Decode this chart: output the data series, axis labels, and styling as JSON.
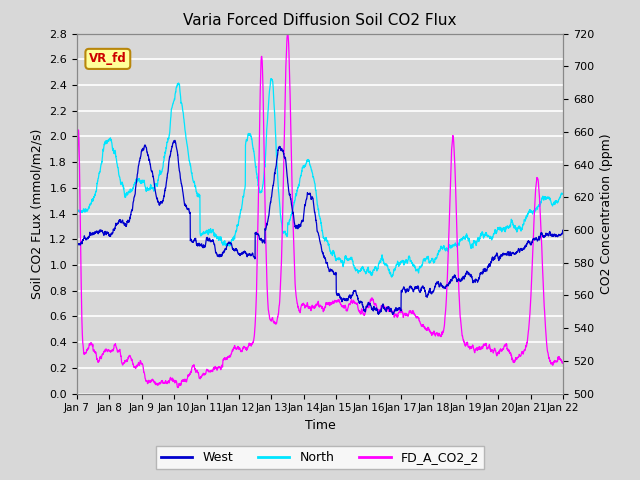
{
  "title": "Varia Forced Diffusion Soil CO2 Flux",
  "xlabel": "Time",
  "ylabel_left": "Soil CO2 FLux (mmol/m2/s)",
  "ylabel_right": "CO2 Concentration (ppm)",
  "ylim_left": [
    0.0,
    2.8
  ],
  "ylim_right": [
    500,
    720
  ],
  "yticks_left": [
    0.0,
    0.2,
    0.4,
    0.6,
    0.8,
    1.0,
    1.2,
    1.4,
    1.6,
    1.8,
    2.0,
    2.2,
    2.4,
    2.6,
    2.8
  ],
  "yticks_right": [
    500,
    520,
    540,
    560,
    580,
    600,
    620,
    640,
    660,
    680,
    700,
    720
  ],
  "xtick_labels": [
    "Jan 7",
    "Jan 8",
    "Jan 9",
    "Jan 10",
    "Jan 11",
    "Jan 12",
    "Jan 13",
    "Jan 14",
    "Jan 15",
    "Jan 16",
    "Jan 17",
    "Jan 18",
    "Jan 19",
    "Jan 20",
    "Jan 21",
    "Jan 22"
  ],
  "legend_entries": [
    "West",
    "North",
    "FD_A_CO2_2"
  ],
  "colors": {
    "west": "#0000cd",
    "north": "#00e5ff",
    "co2": "#ff00ff"
  },
  "annotation_text": "VR_fd",
  "annotation_color": "#cc0000",
  "annotation_bg": "#ffff99",
  "annotation_border": "#b8860b",
  "background_color": "#d8d8d8",
  "grid_color": "#ffffff",
  "n_points": 3000,
  "t_days": 15
}
